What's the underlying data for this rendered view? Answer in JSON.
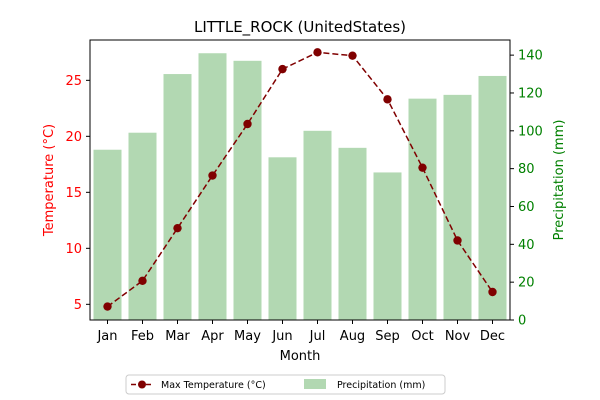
{
  "chart_data": {
    "type": "bar+line",
    "title": "LITTLE_ROCK (UnitedStates)",
    "xlabel": "Month",
    "ylabel_left": "Temperature (°C)",
    "ylabel_right": "Precipitation (mm)",
    "categories": [
      "Jan",
      "Feb",
      "Mar",
      "Apr",
      "May",
      "Jun",
      "Jul",
      "Aug",
      "Sep",
      "Oct",
      "Nov",
      "Dec"
    ],
    "series": [
      {
        "name": "Max Temperature (°C)",
        "type": "line",
        "axis": "left",
        "values": [
          4.8,
          7.1,
          11.8,
          16.5,
          21.1,
          26.0,
          27.5,
          27.2,
          23.3,
          17.2,
          10.7,
          6.1
        ]
      },
      {
        "name": "Precipitation (mm)",
        "type": "bar",
        "axis": "right",
        "values": [
          90,
          99,
          130,
          141,
          137,
          86,
          100,
          91,
          78,
          117,
          119,
          129
        ]
      }
    ],
    "ylim_left": [
      3.6,
      28.6
    ],
    "yticks_left": [
      5,
      10,
      15,
      20,
      25
    ],
    "ylim_right": [
      0,
      148
    ],
    "yticks_right": [
      0,
      20,
      40,
      60,
      80,
      100,
      120,
      140
    ],
    "colors": {
      "line": "#800000",
      "bar": "#b2d8b2",
      "left_axis": "#ff0000",
      "right_axis": "#008000"
    },
    "legend": "bottom-center"
  }
}
